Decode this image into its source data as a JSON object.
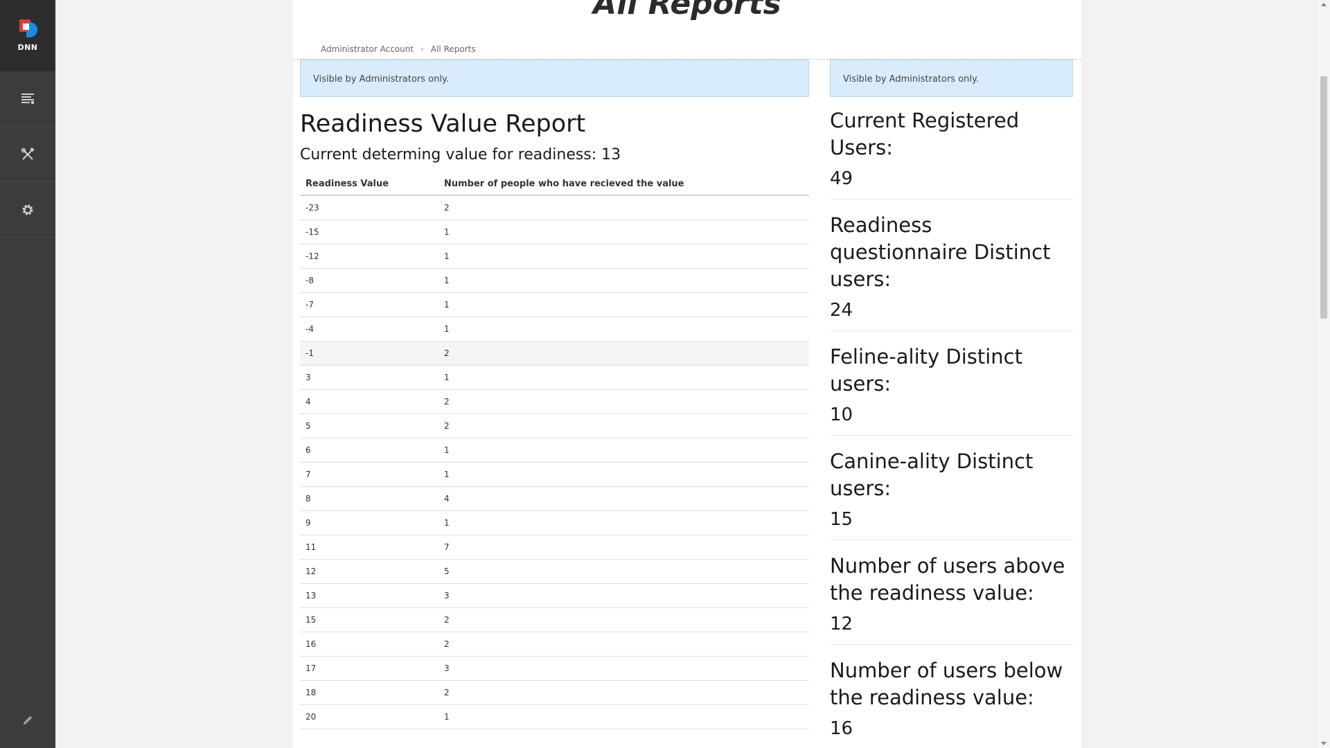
{
  "persona_bar": {
    "logo_text": "DNN",
    "items": [
      {
        "icon": "content-icon"
      },
      {
        "icon": "tools-icon"
      },
      {
        "icon": "gear-icon"
      }
    ],
    "bottom_icon": "pencil-icon"
  },
  "page": {
    "title": "All Reports",
    "breadcrumb": [
      "Administrator Account",
      "All Reports"
    ]
  },
  "notices": {
    "left": "Visible by Administrators only.",
    "right": "Visible by Administrators only."
  },
  "report": {
    "title": "Readiness Value Report",
    "subtitle": "Current determing value for readiness: 13",
    "columns": [
      "Readiness Value",
      "Number of people who have recieved the value"
    ],
    "rows": [
      [
        "-23",
        "2"
      ],
      [
        "-15",
        "1"
      ],
      [
        "-12",
        "1"
      ],
      [
        "-8",
        "1"
      ],
      [
        "-7",
        "1"
      ],
      [
        "-4",
        "1"
      ],
      [
        "-1",
        "2"
      ],
      [
        "3",
        "1"
      ],
      [
        "4",
        "2"
      ],
      [
        "5",
        "2"
      ],
      [
        "6",
        "1"
      ],
      [
        "7",
        "1"
      ],
      [
        "8",
        "4"
      ],
      [
        "9",
        "1"
      ],
      [
        "11",
        "7"
      ],
      [
        "12",
        "5"
      ],
      [
        "13",
        "3"
      ],
      [
        "15",
        "2"
      ],
      [
        "16",
        "2"
      ],
      [
        "17",
        "3"
      ],
      [
        "18",
        "2"
      ],
      [
        "20",
        "1"
      ]
    ],
    "highlighted_row": 6
  },
  "stats": [
    {
      "label": "Current Registered Users:",
      "value": "49"
    },
    {
      "label": "Readiness questionnaire Distinct users:",
      "value": "24"
    },
    {
      "label": "Feline-ality Distinct users:",
      "value": "10"
    },
    {
      "label": "Canine-ality Distinct users:",
      "value": "15"
    },
    {
      "label": "Number of users above the readiness value:",
      "value": "12"
    },
    {
      "label": "Number of users below the readiness value:",
      "value": "16"
    }
  ]
}
